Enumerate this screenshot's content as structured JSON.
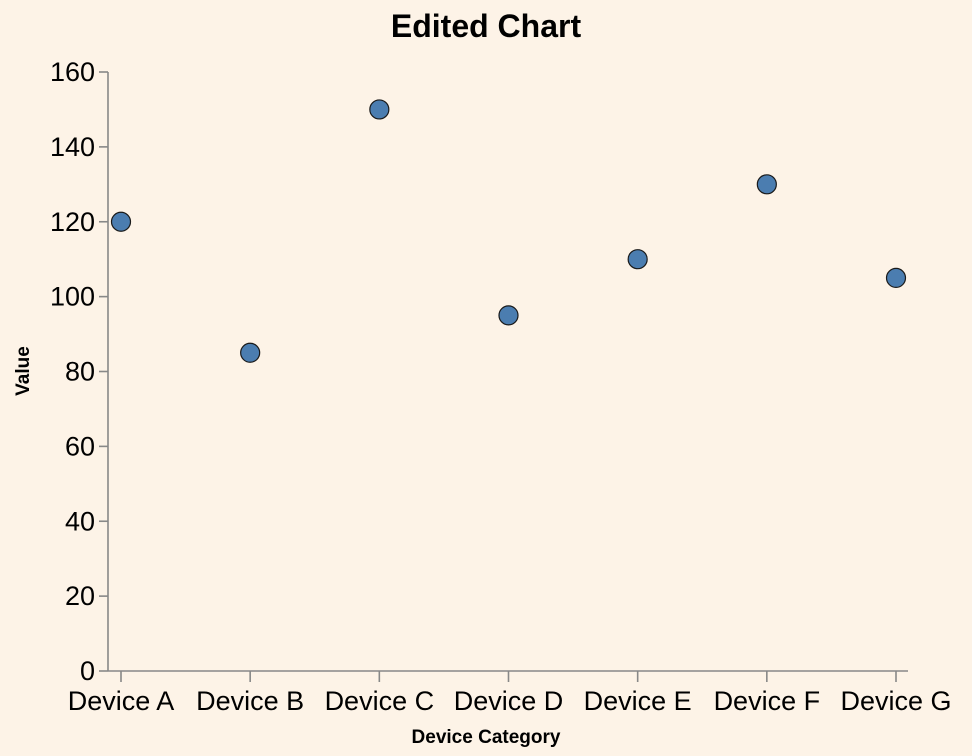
{
  "chart_data": {
    "type": "scatter",
    "title": "Edited Chart",
    "xlabel": "Device Category",
    "ylabel": "Value",
    "categories": [
      "Device A",
      "Device B",
      "Device C",
      "Device D",
      "Device E",
      "Device F",
      "Device G"
    ],
    "values": [
      120,
      85,
      150,
      95,
      110,
      130,
      105
    ],
    "ylim": [
      0,
      160
    ],
    "yticks": [
      "0",
      "20",
      "40",
      "60",
      "80",
      "100",
      "120",
      "140",
      "160"
    ],
    "grid": false,
    "colors": {
      "point": "#4b7db0",
      "background": "#fdf3e7"
    }
  }
}
